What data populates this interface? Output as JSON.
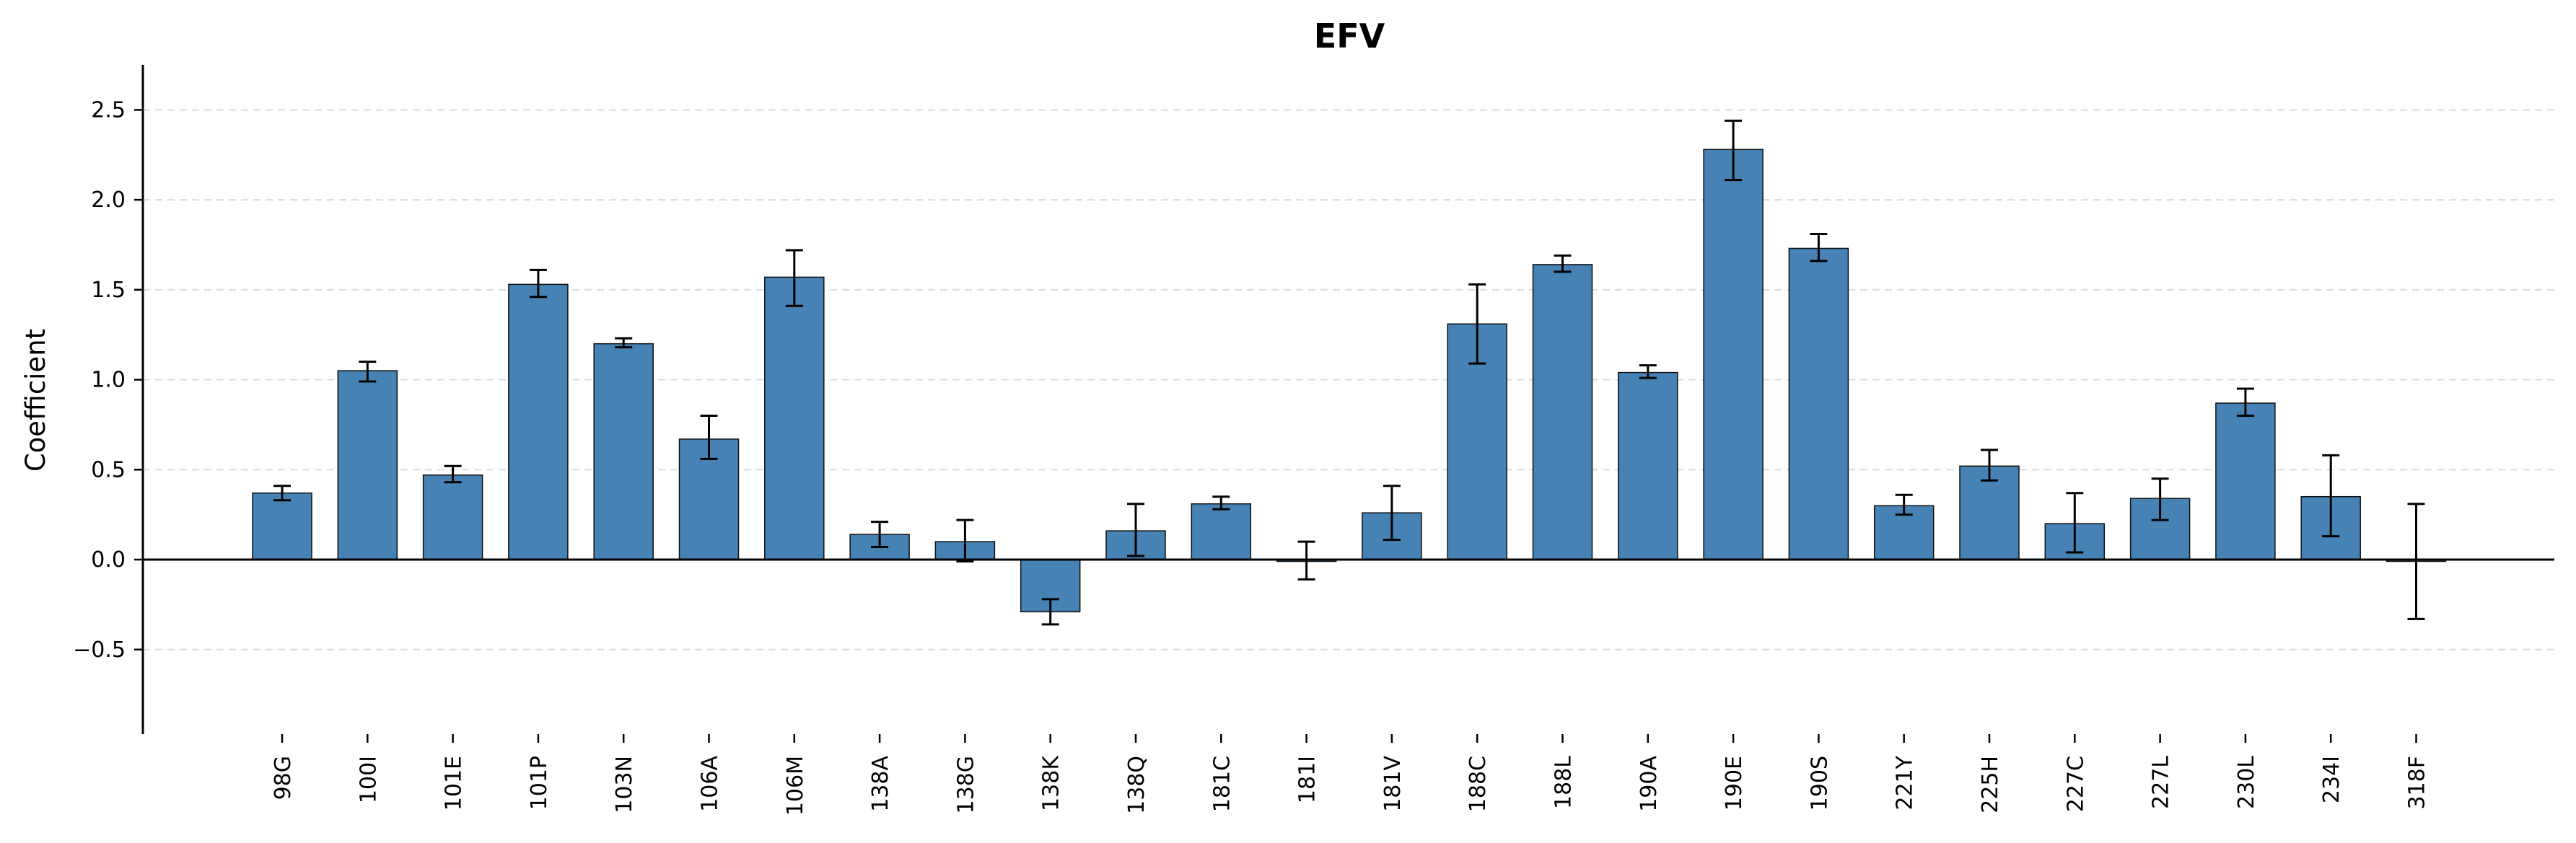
{
  "chart_data": {
    "type": "bar",
    "title": "EFV",
    "xlabel": "",
    "ylabel": "Coefficient",
    "ylim": [
      -0.97,
      2.75
    ],
    "yticks": [
      -0.5,
      0.0,
      0.5,
      1.0,
      1.5,
      2.0,
      2.5
    ],
    "ytick_labels": [
      "−0.5",
      "0.0",
      "0.5",
      "1.0",
      "1.5",
      "2.0",
      "2.5"
    ],
    "grid": "y-dashed",
    "bar_color": "#4682b4",
    "categories": [
      "98G",
      "100I",
      "101E",
      "101P",
      "103N",
      "106A",
      "106M",
      "138A",
      "138G",
      "138K",
      "138Q",
      "181C",
      "181I",
      "181V",
      "188C",
      "188L",
      "190A",
      "190E",
      "190S",
      "221Y",
      "225H",
      "227C",
      "227L",
      "230L",
      "234I",
      "318F"
    ],
    "values": [
      0.37,
      1.05,
      0.47,
      1.53,
      1.2,
      0.67,
      1.57,
      0.14,
      0.1,
      -0.29,
      0.16,
      0.31,
      -0.01,
      0.26,
      1.31,
      1.64,
      1.04,
      2.28,
      1.73,
      0.3,
      0.52,
      0.2,
      0.34,
      0.87,
      0.35,
      -0.01
    ],
    "error_low": [
      0.33,
      0.99,
      0.43,
      1.46,
      1.18,
      0.56,
      1.41,
      0.07,
      -0.01,
      -0.36,
      0.02,
      0.28,
      -0.11,
      0.11,
      1.09,
      1.6,
      1.01,
      2.11,
      1.66,
      0.25,
      0.44,
      0.04,
      0.22,
      0.8,
      0.13,
      -0.33
    ],
    "error_high": [
      0.41,
      1.1,
      0.52,
      1.61,
      1.23,
      0.8,
      1.72,
      0.21,
      0.22,
      -0.22,
      0.31,
      0.35,
      0.1,
      0.41,
      1.53,
      1.69,
      1.08,
      2.44,
      1.81,
      0.36,
      0.61,
      0.37,
      0.45,
      0.95,
      0.58,
      0.31
    ]
  }
}
